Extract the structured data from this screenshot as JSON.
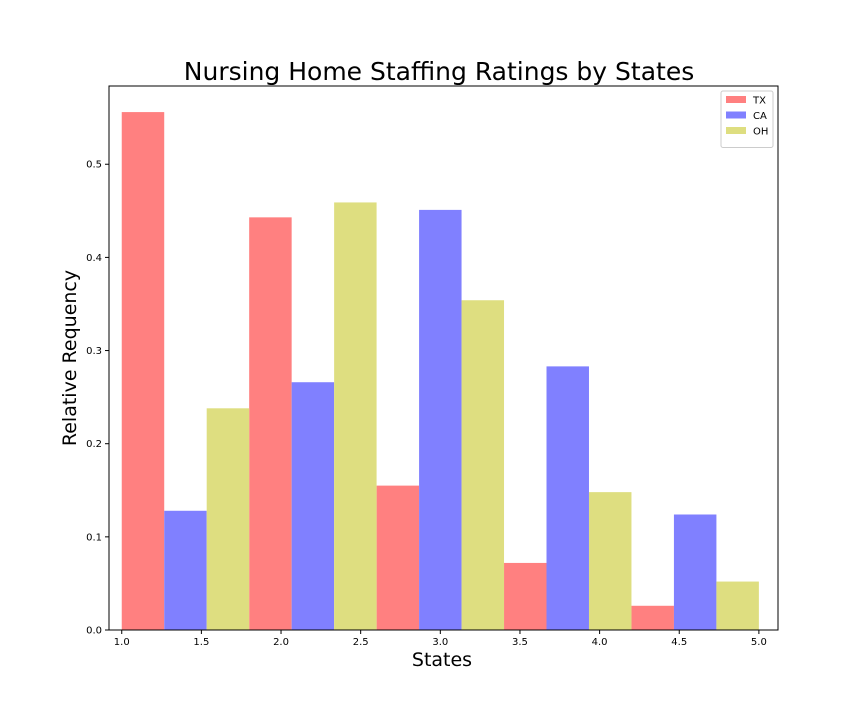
{
  "chart_data": {
    "type": "bar",
    "title": "Nursing Home Staffing Ratings by States",
    "xlabel": "States",
    "ylabel": "Relative Requency",
    "xlim": [
      0.92,
      5.12
    ],
    "ylim": [
      0,
      0.584
    ],
    "xticks": [
      "1.0",
      "1.5",
      "2.0",
      "2.5",
      "3.0",
      "3.5",
      "4.0",
      "4.5",
      "5.0"
    ],
    "yticks": [
      "0.0",
      "0.1",
      "0.2",
      "0.3",
      "0.4",
      "0.5"
    ],
    "bin_edges": [
      1.0,
      1.8,
      2.6,
      3.4,
      4.2,
      5.0
    ],
    "grid": false,
    "legend_position": "top-right",
    "series": [
      {
        "name": "TX",
        "color": "#ff8080",
        "values": [
          0.556,
          0.443,
          0.155,
          0.072,
          0.026
        ]
      },
      {
        "name": "CA",
        "color": "#8080ff",
        "values": [
          0.128,
          0.266,
          0.451,
          0.283,
          0.124
        ]
      },
      {
        "name": "OH",
        "color": "#dede80",
        "values": [
          0.238,
          0.459,
          0.354,
          0.148,
          0.052
        ]
      }
    ]
  }
}
